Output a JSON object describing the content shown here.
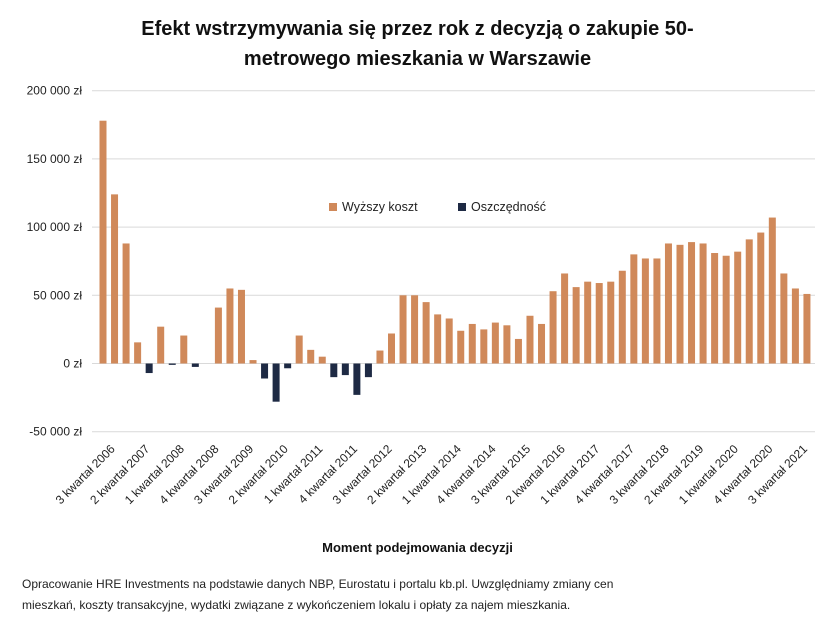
{
  "chart_data": {
    "type": "bar",
    "title": "Efekt wstrzymywania się przez rok z decyzją o zakupie 50-metrowego mieszkania w Warszawie",
    "xlabel": "Moment podejmowania decyzji",
    "ylabel": "",
    "ylim": [
      -50000,
      200000
    ],
    "yticks": [
      200000,
      150000,
      100000,
      50000,
      0,
      -50000
    ],
    "ytick_labels": [
      "200 000 zł",
      "150 000 zł",
      "100 000 zł",
      "50 000 zł",
      "0 zł",
      "-50 000 zł"
    ],
    "grid": true,
    "legend": "center",
    "xtick_labels": [
      "3 kwartał 2006",
      "2 kwartał 2007",
      "1 kwartał 2008",
      "4 kwartał 2008",
      "3 kwartał 2009",
      "2 kwartał 2010",
      "1 kwartał 2011",
      "4 kwartał 2011",
      "3 kwartał 2012",
      "2 kwartał 2013",
      "1 kwartał 2014",
      "4 kwartał 2014",
      "3 kwartał 2015",
      "2 kwartał 2016",
      "1 kwartał 2017",
      "4 kwartał 2017",
      "3 kwartał 2018",
      "2 kwartał 2019",
      "1 kwartał 2020",
      "4 kwartał 2020",
      "3 kwartał 2021"
    ],
    "values": [
      178000,
      124000,
      88000,
      15500,
      -7000,
      27000,
      -1000,
      20500,
      -2500,
      0,
      41000,
      55000,
      54000,
      2500,
      -11000,
      -28000,
      -3500,
      20500,
      10000,
      5000,
      -10000,
      -8500,
      -23000,
      -10000,
      9500,
      22000,
      50000,
      50000,
      45000,
      36000,
      33000,
      24000,
      29000,
      25000,
      30000,
      28000,
      18000,
      35000,
      29000,
      53000,
      66000,
      56000,
      60000,
      59000,
      60000,
      68000,
      80000,
      77000,
      77000,
      88000,
      87000,
      89000,
      88000,
      81000,
      79000,
      82000,
      91000,
      96000,
      107000,
      66000,
      55000,
      51000
    ],
    "series": [
      {
        "name": "Wyższy koszt",
        "color": "#D0895A",
        "rule": "positive"
      },
      {
        "name": "Oszczędność",
        "color": "#1E2A44",
        "rule": "negative"
      }
    ]
  },
  "footnote": {
    "line1": "Opracowanie HRE Investments na podstawie danych NBP, Eurostatu i portalu kb.pl. Uwzględniamy zmiany cen",
    "line2": "mieszkań, koszty transakcyjne, wydatki związane z wykończeniem lokalu i opłaty za najem mieszkania."
  }
}
